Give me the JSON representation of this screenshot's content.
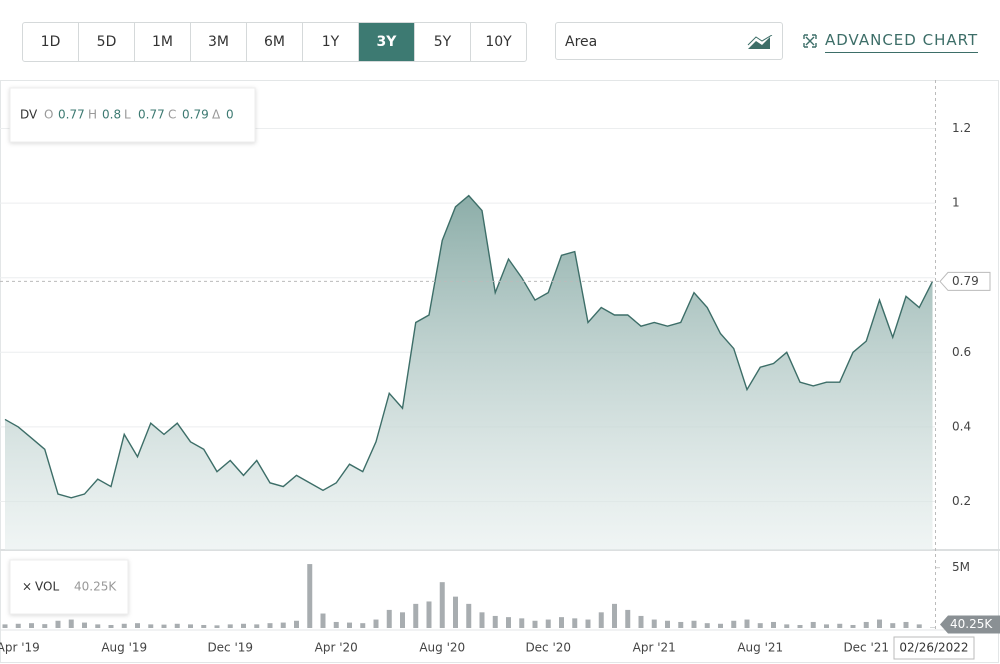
{
  "ranges": [
    "1D",
    "5D",
    "1M",
    "3M",
    "6M",
    "1Y",
    "3Y",
    "5Y",
    "10Y"
  ],
  "selected_range": "3Y",
  "chart_style": "Area",
  "advanced": "ADVANCED CHART",
  "ohlc": {
    "symbol": "DV",
    "o_label": "O",
    "o": 0.77,
    "h_label": "H",
    "h": 0.8,
    "l_label": "L",
    "l": 0.77,
    "c_label": "C",
    "c": 0.79,
    "d_label": "Δ",
    "d": 0
  },
  "vol_legend": {
    "label": "VOL",
    "value": "40.25K"
  },
  "last_date": "02/26/2022",
  "chart_data": {
    "type": "area",
    "categories": [
      null,
      "Apr '19",
      null,
      null,
      null,
      null,
      null,
      null,
      null,
      "Aug '19",
      null,
      null,
      null,
      null,
      null,
      null,
      null,
      "Dec '19",
      null,
      null,
      null,
      null,
      null,
      null,
      null,
      "Apr '20",
      null,
      null,
      null,
      null,
      null,
      null,
      null,
      "Aug '20",
      null,
      null,
      null,
      null,
      null,
      null,
      null,
      "Dec '20",
      null,
      null,
      null,
      null,
      null,
      null,
      null,
      "Apr '21",
      null,
      null,
      null,
      null,
      null,
      null,
      null,
      "Aug '21",
      null,
      null,
      null,
      null,
      null,
      null,
      null,
      "Dec '21",
      null,
      null,
      null,
      null,
      null
    ],
    "series": [
      {
        "name": "DV",
        "color": "#3d6e68",
        "values": [
          0.42,
          0.4,
          0.37,
          0.34,
          0.22,
          0.21,
          0.22,
          0.26,
          0.24,
          0.38,
          0.32,
          0.41,
          0.38,
          0.41,
          0.36,
          0.34,
          0.28,
          0.31,
          0.27,
          0.31,
          0.25,
          0.24,
          0.27,
          0.25,
          0.23,
          0.25,
          0.3,
          0.28,
          0.36,
          0.49,
          0.45,
          0.68,
          0.7,
          0.9,
          0.99,
          1.02,
          0.98,
          0.76,
          0.85,
          0.8,
          0.74,
          0.76,
          0.86,
          0.87,
          0.68,
          0.72,
          0.7,
          0.7,
          0.67,
          0.68,
          0.67,
          0.68,
          0.76,
          0.72,
          0.65,
          0.61,
          0.5,
          0.56,
          0.57,
          0.6,
          0.52,
          0.51,
          0.52,
          0.52,
          0.6,
          0.63,
          0.74,
          0.64,
          0.75,
          0.72,
          0.79
        ]
      },
      {
        "name": "VOL",
        "color": "#a8adb0",
        "axis": "y2",
        "values": [
          300000,
          350000,
          400000,
          320000,
          600000,
          700000,
          450000,
          300000,
          250000,
          350000,
          400000,
          300000,
          280000,
          350000,
          300000,
          250000,
          220000,
          300000,
          350000,
          300000,
          400000,
          450000,
          600000,
          5300000,
          1200000,
          500000,
          450000,
          400000,
          700000,
          1500000,
          1300000,
          2000000,
          2200000,
          3800000,
          2600000,
          2000000,
          1300000,
          1000000,
          900000,
          800000,
          600000,
          700000,
          900000,
          800000,
          700000,
          1300000,
          2000000,
          1500000,
          1000000,
          700000,
          600000,
          500000,
          600000,
          400000,
          350000,
          600000,
          700000,
          400000,
          500000,
          300000,
          250000,
          500000,
          300000,
          350000,
          250000,
          500000,
          700000,
          400000,
          500000,
          300000,
          40250
        ]
      }
    ],
    "ylim": [
      0.07,
      1.33
    ],
    "yticks": [
      0.2,
      0.4,
      0.6,
      {
        "value": 0.8,
        "label": ""
      },
      1,
      1.2
    ],
    "y2lim": [
      0,
      6300000
    ],
    "y2ticks": [
      {
        "value": 5000000,
        "label": "5M"
      }
    ],
    "grid": true
  }
}
